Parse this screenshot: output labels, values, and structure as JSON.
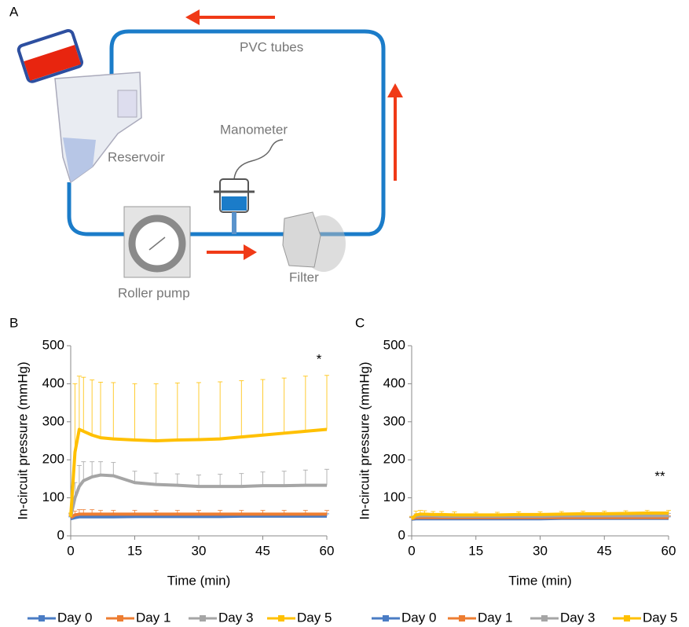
{
  "diagram": {
    "panel_label": "A",
    "pvc_tubes": "PVC tubes",
    "manometer": "Manometer",
    "reservoir": "Reservoir",
    "roller_pump": "Roller pump",
    "filter": "Filter"
  },
  "chart_data": [
    {
      "type": "line",
      "panel_label": "B",
      "x_label": "Time (min)",
      "y_label": "In-circuit pressure (mmHg)",
      "x": [
        0,
        1,
        2,
        3,
        5,
        7,
        10,
        15,
        20,
        25,
        30,
        35,
        40,
        45,
        50,
        55,
        60
      ],
      "xlim": [
        0,
        60
      ],
      "xticks": [
        0,
        15,
        30,
        45,
        60
      ],
      "ylim": [
        0,
        500
      ],
      "yticks": [
        0,
        100,
        200,
        300,
        400,
        500
      ],
      "annotations": [
        "*"
      ],
      "series": [
        {
          "name": "Day 0",
          "color": "#4a7cc4",
          "values": [
            45,
            48,
            50,
            50,
            50,
            50,
            50,
            51,
            51,
            51,
            51,
            51,
            52,
            52,
            52,
            52,
            52
          ],
          "errors": [
            5,
            6,
            6,
            6,
            6,
            6,
            6,
            6,
            6,
            6,
            6,
            6,
            6,
            6,
            6,
            6,
            6
          ]
        },
        {
          "name": "Day 1",
          "color": "#ed7d31",
          "values": [
            48,
            55,
            57,
            57,
            57,
            57,
            57,
            57,
            57,
            57,
            57,
            57,
            57,
            57,
            57,
            57,
            57
          ],
          "errors": [
            6,
            10,
            12,
            12,
            12,
            10,
            10,
            10,
            10,
            10,
            10,
            10,
            10,
            10,
            10,
            10,
            10
          ]
        },
        {
          "name": "Day 3",
          "color": "#a5a5a5",
          "values": [
            50,
            100,
            130,
            145,
            155,
            160,
            158,
            140,
            135,
            133,
            130,
            130,
            130,
            132,
            132,
            133,
            133
          ],
          "errors": [
            8,
            40,
            55,
            50,
            40,
            35,
            35,
            30,
            30,
            30,
            30,
            32,
            34,
            36,
            38,
            40,
            42
          ]
        },
        {
          "name": "Day 5",
          "color": "#ffc000",
          "values": [
            50,
            220,
            280,
            275,
            265,
            258,
            255,
            252,
            250,
            252,
            253,
            255,
            260,
            265,
            270,
            275,
            280
          ],
          "errors": [
            10,
            180,
            140,
            142,
            145,
            146,
            148,
            148,
            150,
            150,
            150,
            150,
            148,
            146,
            145,
            145,
            142
          ]
        }
      ]
    },
    {
      "type": "line",
      "panel_label": "C",
      "x_label": "Time (min)",
      "y_label": "In-circuit pressure (mmHg)",
      "x": [
        0,
        1,
        2,
        3,
        5,
        7,
        10,
        15,
        20,
        25,
        30,
        35,
        40,
        45,
        50,
        55,
        60
      ],
      "xlim": [
        0,
        60
      ],
      "xticks": [
        0,
        15,
        30,
        45,
        60
      ],
      "ylim": [
        0,
        500
      ],
      "yticks": [
        0,
        100,
        200,
        300,
        400,
        500
      ],
      "annotations": [
        "**"
      ],
      "series": [
        {
          "name": "Day 0",
          "color": "#4a7cc4",
          "values": [
            44,
            45,
            45,
            45,
            45,
            45,
            45,
            45,
            45,
            45,
            45,
            46,
            46,
            46,
            46,
            46,
            46
          ],
          "errors": [
            4,
            4,
            4,
            4,
            4,
            4,
            4,
            4,
            4,
            4,
            4,
            4,
            4,
            4,
            4,
            4,
            4
          ]
        },
        {
          "name": "Day 1",
          "color": "#ed7d31",
          "values": [
            45,
            48,
            48,
            48,
            48,
            48,
            48,
            48,
            48,
            48,
            48,
            48,
            48,
            48,
            48,
            48,
            48
          ],
          "errors": [
            4,
            5,
            5,
            5,
            5,
            5,
            5,
            5,
            5,
            5,
            5,
            5,
            5,
            5,
            5,
            5,
            5
          ]
        },
        {
          "name": "Day 3",
          "color": "#a5a5a5",
          "values": [
            46,
            52,
            53,
            53,
            53,
            52,
            52,
            52,
            52,
            52,
            52,
            53,
            53,
            53,
            53,
            53,
            53
          ],
          "errors": [
            5,
            6,
            6,
            6,
            6,
            6,
            6,
            6,
            6,
            6,
            6,
            6,
            6,
            6,
            6,
            6,
            6
          ]
        },
        {
          "name": "Day 5",
          "color": "#ffc000",
          "values": [
            45,
            55,
            57,
            57,
            56,
            56,
            55,
            55,
            55,
            56,
            56,
            57,
            58,
            58,
            59,
            60,
            60
          ],
          "errors": [
            6,
            10,
            10,
            9,
            8,
            8,
            8,
            7,
            7,
            7,
            7,
            7,
            7,
            7,
            7,
            7,
            7
          ]
        }
      ]
    }
  ]
}
